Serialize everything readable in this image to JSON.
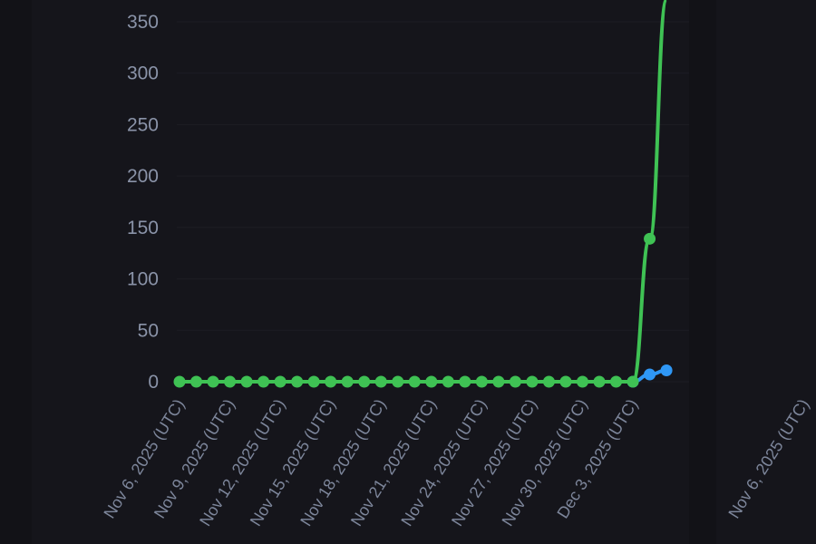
{
  "chart_data": {
    "type": "line",
    "title": "",
    "xlabel": "",
    "ylabel": "",
    "ylim": [
      0,
      371
    ],
    "yticks": [
      0,
      50,
      100,
      150,
      200,
      250,
      300,
      350
    ],
    "grid": true,
    "x": [
      "Nov 6",
      "Nov 7",
      "Nov 8",
      "Nov 9",
      "Nov 10",
      "Nov 11",
      "Nov 12",
      "Nov 13",
      "Nov 14",
      "Nov 15",
      "Nov 16",
      "Nov 17",
      "Nov 18",
      "Nov 19",
      "Nov 20",
      "Nov 21",
      "Nov 22",
      "Nov 23",
      "Nov 24",
      "Nov 25",
      "Nov 26",
      "Nov 27",
      "Nov 28",
      "Nov 29",
      "Nov 30",
      "Dec 1",
      "Dec 2",
      "Dec 3",
      "Dec 4",
      "Dec 5"
    ],
    "xtick_labels": [
      "Nov 6, 2025 (UTC)",
      "Nov 9, 2025 (UTC)",
      "Nov 12, 2025 (UTC)",
      "Nov 15, 2025 (UTC)",
      "Nov 18, 2025 (UTC)",
      "Nov 21, 2025 (UTC)",
      "Nov 24, 2025 (UTC)",
      "Nov 27, 2025 (UTC)",
      "Nov 30, 2025 (UTC)",
      "Dec 3, 2025 (UTC)"
    ],
    "series": [
      {
        "color": "#3fc254",
        "values": [
          0,
          0,
          0,
          0,
          0,
          0,
          0,
          0,
          0,
          0,
          0,
          0,
          0,
          0,
          0,
          0,
          0,
          0,
          0,
          0,
          0,
          0,
          0,
          0,
          0,
          0,
          0,
          0,
          139,
          400
        ]
      },
      {
        "color": "#2f97f5",
        "values": [
          null,
          null,
          null,
          null,
          null,
          null,
          null,
          null,
          null,
          null,
          null,
          null,
          null,
          null,
          null,
          null,
          null,
          null,
          null,
          null,
          null,
          null,
          null,
          null,
          null,
          null,
          null,
          0,
          7,
          11
        ]
      }
    ]
  },
  "side_panel": {
    "xtick_label": "Nov 6, 2025 (UTC)"
  }
}
